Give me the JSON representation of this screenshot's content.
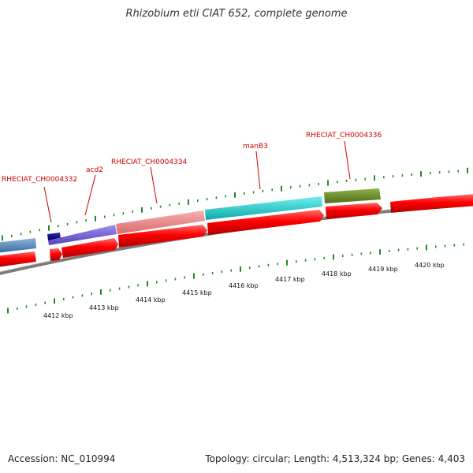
{
  "title": "Rhizobium etli CIAT 652, complete genome",
  "footer": {
    "accession": "Accession: NC_010994",
    "stats": "Topology: circular; Length: 4,513,324 bp; Genes: 4,403"
  },
  "gene_labels": [
    "RHECIAT_CH0004332",
    "acd2",
    "RHECIAT_CH0004334",
    "manB3",
    "RHECIAT_CH0004336"
  ],
  "tick_labels": [
    "4412 kbp",
    "4413 kbp",
    "4414 kbp",
    "4415 kbp",
    "4416 kbp",
    "4417 kbp",
    "4418 kbp",
    "4419 kbp",
    "4420 kbp"
  ],
  "colors": {
    "cds": "#ff0000",
    "backbone": "#7a7a7a",
    "tick": "#228b22",
    "label": "#cc0000",
    "feature_steelblue": "#4f7fb5",
    "feature_navy": "#0b0b7a",
    "feature_slateblue": "#6a5acd",
    "feature_salmon": "#f08080",
    "feature_cyan": "#20c8c8",
    "feature_olive": "#6b8e23"
  }
}
